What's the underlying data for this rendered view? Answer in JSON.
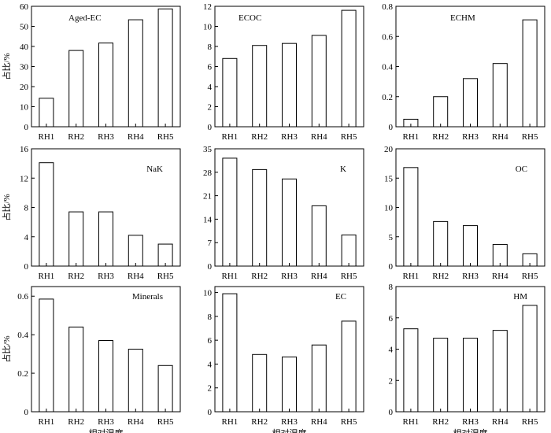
{
  "figure": {
    "ylabel": "占比/%",
    "xlabel": "相对湿度"
  },
  "chart_data": [
    {
      "type": "bar",
      "title": "Aged-EC",
      "categories": [
        "RH1",
        "RH2",
        "RH3",
        "RH4",
        "RH5"
      ],
      "values": [
        14.2,
        38.0,
        41.7,
        53.3,
        58.7
      ],
      "ylim": [
        0,
        60
      ],
      "yticks": [
        "0",
        "10",
        "20",
        "30",
        "40",
        "50",
        "60"
      ],
      "ytick_values": [
        0,
        10,
        20,
        30,
        40,
        50,
        60
      ],
      "ylabel": "占比/%",
      "xlabel": "",
      "grid": false
    },
    {
      "type": "bar",
      "title": "ECOC",
      "categories": [
        "RH1",
        "RH2",
        "RH3",
        "RH4",
        "RH5"
      ],
      "values": [
        6.8,
        8.1,
        8.3,
        9.1,
        11.6
      ],
      "ylim": [
        0,
        12
      ],
      "yticks": [
        "0",
        "2",
        "4",
        "6",
        "8",
        "10",
        "12"
      ],
      "ytick_values": [
        0,
        2,
        4,
        6,
        8,
        10,
        12
      ],
      "ylabel": "",
      "xlabel": "",
      "grid": false
    },
    {
      "type": "bar",
      "title": "ECHM",
      "categories": [
        "RH1",
        "RH2",
        "RH3",
        "RH4",
        "RH5"
      ],
      "values": [
        0.05,
        0.2,
        0.32,
        0.42,
        0.71
      ],
      "ylim": [
        0,
        0.8
      ],
      "yticks": [
        "0",
        "0.2",
        "0.4",
        "0.6",
        "0.8"
      ],
      "ytick_values": [
        0,
        0.2,
        0.4,
        0.6,
        0.8
      ],
      "ylabel": "",
      "xlabel": "",
      "grid": false
    },
    {
      "type": "bar",
      "title": "NaK",
      "categories": [
        "RH1",
        "RH2",
        "RH3",
        "RH4",
        "RH5"
      ],
      "values": [
        14.1,
        7.4,
        7.4,
        4.2,
        3.0
      ],
      "ylim": [
        0,
        16
      ],
      "yticks": [
        "0",
        "4",
        "8",
        "12",
        "16"
      ],
      "ytick_values": [
        0,
        4,
        8,
        12,
        16
      ],
      "ylabel": "占比/%",
      "xlabel": "",
      "grid": false
    },
    {
      "type": "bar",
      "title": "K",
      "categories": [
        "RH1",
        "RH2",
        "RH3",
        "RH4",
        "RH5"
      ],
      "values": [
        32.2,
        28.8,
        26.0,
        18.0,
        9.3
      ],
      "ylim": [
        0,
        35
      ],
      "yticks": [
        "0",
        "7",
        "14",
        "21",
        "28",
        "35"
      ],
      "ytick_values": [
        0,
        7,
        14,
        21,
        28,
        35
      ],
      "ylabel": "",
      "xlabel": "",
      "grid": false
    },
    {
      "type": "bar",
      "title": "OC",
      "categories": [
        "RH1",
        "RH2",
        "RH3",
        "RH4",
        "RH5"
      ],
      "values": [
        16.8,
        7.6,
        6.9,
        3.7,
        2.1
      ],
      "ylim": [
        0,
        20
      ],
      "yticks": [
        "0",
        "5",
        "10",
        "15",
        "20"
      ],
      "ytick_values": [
        0,
        5,
        10,
        15,
        20
      ],
      "ylabel": "",
      "xlabel": "",
      "grid": false
    },
    {
      "type": "bar",
      "title": "Minerals",
      "categories": [
        "RH1",
        "RH2",
        "RH3",
        "RH4",
        "RH5"
      ],
      "values": [
        0.585,
        0.44,
        0.37,
        0.325,
        0.24
      ],
      "ylim": [
        0,
        0.65
      ],
      "yticks": [
        "0",
        "0.2",
        "0.4",
        "0.6"
      ],
      "ytick_values": [
        0,
        0.2,
        0.4,
        0.6
      ],
      "ylabel": "占比/%",
      "xlabel": "相对湿度",
      "grid": false
    },
    {
      "type": "bar",
      "title": "EC",
      "categories": [
        "RH1",
        "RH2",
        "RH3",
        "RH4",
        "RH5"
      ],
      "values": [
        9.9,
        4.8,
        4.6,
        5.6,
        7.6
      ],
      "ylim": [
        0,
        10.5
      ],
      "yticks": [
        "0",
        "2",
        "4",
        "6",
        "8",
        "10"
      ],
      "ytick_values": [
        0,
        2,
        4,
        6,
        8,
        10
      ],
      "ylabel": "",
      "xlabel": "相对湿度",
      "grid": false
    },
    {
      "type": "bar",
      "title": "HM",
      "categories": [
        "RH1",
        "RH2",
        "RH3",
        "RH4",
        "RH5"
      ],
      "values": [
        5.3,
        4.7,
        4.7,
        5.2,
        6.8
      ],
      "ylim": [
        0,
        8
      ],
      "yticks": [
        "0",
        "2",
        "4",
        "6",
        "8"
      ],
      "ytick_values": [
        0,
        2,
        4,
        6,
        8
      ],
      "ylabel": "",
      "xlabel": "相对湿度",
      "grid": false
    }
  ]
}
